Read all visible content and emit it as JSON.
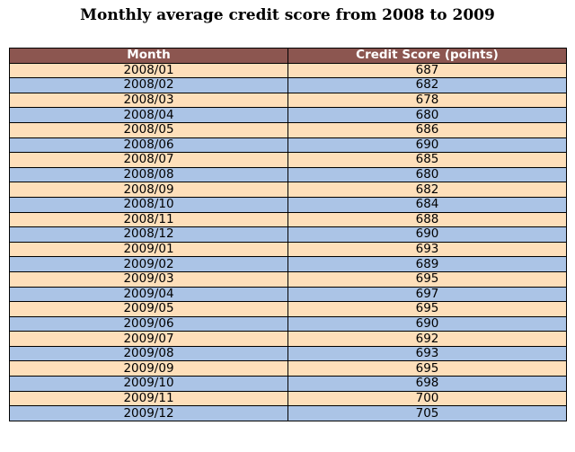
{
  "chart_data": {
    "type": "table",
    "title": "Monthly average credit score from 2008 to 2009",
    "columns": [
      "Month",
      "Credit Score (points)"
    ],
    "rows": [
      [
        "2008/01",
        "687"
      ],
      [
        "2008/02",
        "682"
      ],
      [
        "2008/03",
        "678"
      ],
      [
        "2008/04",
        "680"
      ],
      [
        "2008/05",
        "686"
      ],
      [
        "2008/06",
        "690"
      ],
      [
        "2008/07",
        "685"
      ],
      [
        "2008/08",
        "680"
      ],
      [
        "2008/09",
        "682"
      ],
      [
        "2008/10",
        "684"
      ],
      [
        "2008/11",
        "688"
      ],
      [
        "2008/12",
        "690"
      ],
      [
        "2009/01",
        "693"
      ],
      [
        "2009/02",
        "689"
      ],
      [
        "2009/03",
        "695"
      ],
      [
        "2009/04",
        "697"
      ],
      [
        "2009/05",
        "695"
      ],
      [
        "2009/06",
        "690"
      ],
      [
        "2009/07",
        "692"
      ],
      [
        "2009/08",
        "693"
      ],
      [
        "2009/09",
        "695"
      ],
      [
        "2009/10",
        "698"
      ],
      [
        "2009/11",
        "700"
      ],
      [
        "2009/12",
        "705"
      ]
    ]
  },
  "colors": {
    "header_bg": "#8c5650",
    "row_odd": "#fedfba",
    "row_even": "#abc4e6"
  }
}
